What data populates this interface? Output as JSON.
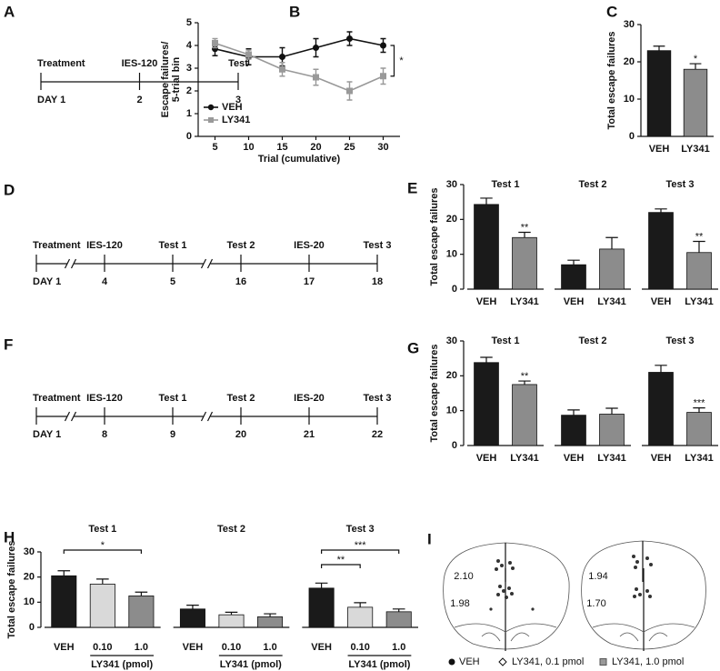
{
  "timelines": [
    {
      "panel": "A",
      "events": [
        {
          "label": "Treatment",
          "day": "DAY 1"
        },
        {
          "label": "IES-120",
          "day": "2"
        },
        {
          "label": "Test",
          "day": "3"
        }
      ],
      "breaks_after": []
    },
    {
      "panel": "D",
      "events": [
        {
          "label": "Treatment",
          "day": "DAY 1"
        },
        {
          "label": "IES-120",
          "day": "4"
        },
        {
          "label": "Test 1",
          "day": "5"
        },
        {
          "label": "Test 2",
          "day": "16"
        },
        {
          "label": "IES-20",
          "day": "17"
        },
        {
          "label": "Test 3",
          "day": "18"
        }
      ],
      "breaks_after": [
        0,
        2
      ]
    },
    {
      "panel": "F",
      "events": [
        {
          "label": "Treatment",
          "day": "DAY 1"
        },
        {
          "label": "IES-120",
          "day": "8"
        },
        {
          "label": "Test 1",
          "day": "9"
        },
        {
          "label": "Test 2",
          "day": "20"
        },
        {
          "label": "IES-20",
          "day": "21"
        },
        {
          "label": "Test 3",
          "day": "22"
        }
      ],
      "breaks_after": [
        0,
        2
      ]
    }
  ],
  "chart_data": [
    {
      "panel": "B",
      "type": "line",
      "ylabel": [
        "Escape  failures/",
        "5-trial bin"
      ],
      "xlabel": "Trial (cumulative)",
      "x": [
        5,
        10,
        15,
        20,
        25,
        30
      ],
      "xlim": [
        2.5,
        32.5
      ],
      "xticks": [
        5,
        10,
        15,
        20,
        25,
        30
      ],
      "ylim": [
        0,
        5
      ],
      "yticks": [
        0,
        1,
        2,
        3,
        4,
        5
      ],
      "legend": "lower left",
      "annotation": "*",
      "series": [
        {
          "name": "VEH",
          "color": "#111111",
          "marker": "circle",
          "values": [
            3.85,
            3.5,
            3.5,
            3.9,
            4.3,
            4.0
          ],
          "errors": [
            0.3,
            0.35,
            0.4,
            0.4,
            0.3,
            0.3
          ]
        },
        {
          "name": "LY341",
          "color": "#999999",
          "marker": "square",
          "values": [
            4.1,
            3.6,
            2.95,
            2.6,
            2.0,
            2.65
          ],
          "errors": [
            0.2,
            0.2,
            0.3,
            0.35,
            0.4,
            0.35
          ]
        }
      ]
    },
    {
      "panel": "C",
      "type": "bar",
      "ylabel": "Total escape  failures",
      "categories": [
        "VEH",
        "LY341"
      ],
      "colors": [
        "#1a1a1a",
        "#8c8c8c"
      ],
      "values": [
        23,
        18
      ],
      "errors": [
        1.2,
        1.5
      ],
      "ylim": [
        0,
        30
      ],
      "yticks": [
        0,
        10,
        20,
        30
      ],
      "significance": [
        {
          "index": 1,
          "label": "*"
        }
      ]
    },
    {
      "panel": "E",
      "type": "grouped_bar",
      "ylabel": "Total escape failures",
      "categories": [
        "VEH",
        "LY341"
      ],
      "colors": [
        "#1a1a1a",
        "#8c8c8c"
      ],
      "ylim": [
        0,
        30
      ],
      "yticks": [
        0,
        10,
        20,
        30
      ],
      "groups": [
        {
          "title": "Test 1",
          "values": [
            24.3,
            14.8
          ],
          "errors": [
            1.8,
            1.5
          ],
          "significance": [
            {
              "index": 1,
              "label": "**"
            }
          ]
        },
        {
          "title": "Test 2",
          "values": [
            7.0,
            11.5
          ],
          "errors": [
            1.3,
            3.3
          ]
        },
        {
          "title": "Test 3",
          "values": [
            22.0,
            10.5
          ],
          "errors": [
            1.0,
            3.2
          ],
          "significance": [
            {
              "index": 1,
              "label": "**"
            }
          ]
        }
      ]
    },
    {
      "panel": "G",
      "type": "grouped_bar",
      "ylabel": "Total escape failures",
      "categories": [
        "VEH",
        "LY341"
      ],
      "colors": [
        "#1a1a1a",
        "#8c8c8c"
      ],
      "ylim": [
        0,
        30
      ],
      "yticks": [
        0,
        10,
        20,
        30
      ],
      "groups": [
        {
          "title": "Test 1",
          "values": [
            23.8,
            17.5
          ],
          "errors": [
            1.5,
            1.0
          ],
          "significance": [
            {
              "index": 1,
              "label": "**"
            }
          ]
        },
        {
          "title": "Test 2",
          "values": [
            8.7,
            9.0
          ],
          "errors": [
            1.5,
            1.7
          ]
        },
        {
          "title": "Test 3",
          "values": [
            21.0,
            9.5
          ],
          "errors": [
            2.0,
            1.3
          ],
          "significance": [
            {
              "index": 1,
              "label": "***"
            }
          ]
        }
      ]
    },
    {
      "panel": "H",
      "type": "grouped_bar",
      "ylabel": "Total escape failures",
      "categories": [
        "VEH",
        "0.10",
        "1.0"
      ],
      "group_label": "LY341 (pmol)",
      "group_span": [
        1,
        2
      ],
      "colors": [
        "#1a1a1a",
        "#d9d9d9",
        "#8c8c8c"
      ],
      "ylim": [
        0,
        30
      ],
      "yticks": [
        0,
        10,
        20,
        30
      ],
      "groups": [
        {
          "title": "Test 1",
          "values": [
            20.5,
            17.2,
            12.5
          ],
          "errors": [
            2.0,
            2.0,
            1.5
          ],
          "brackets": [
            {
              "from": 0,
              "to": 2,
              "label": "*"
            }
          ]
        },
        {
          "title": "Test 2",
          "values": [
            7.3,
            5.0,
            4.2
          ],
          "errors": [
            1.5,
            1.0,
            1.2
          ]
        },
        {
          "title": "Test 3",
          "values": [
            15.6,
            8.0,
            6.2
          ],
          "errors": [
            2.0,
            1.8,
            1.1
          ],
          "brackets": [
            {
              "from": 0,
              "to": 2,
              "label": "***"
            },
            {
              "from": 0,
              "to": 1,
              "label": "**"
            }
          ]
        }
      ]
    }
  ],
  "atlas": {
    "panel": "I",
    "sections": [
      "2.10",
      "1.94",
      "1.98",
      "1.70"
    ],
    "legend": [
      "VEH",
      "LY341, 0.1 pmol",
      "LY341, 1.0 pmol"
    ]
  }
}
